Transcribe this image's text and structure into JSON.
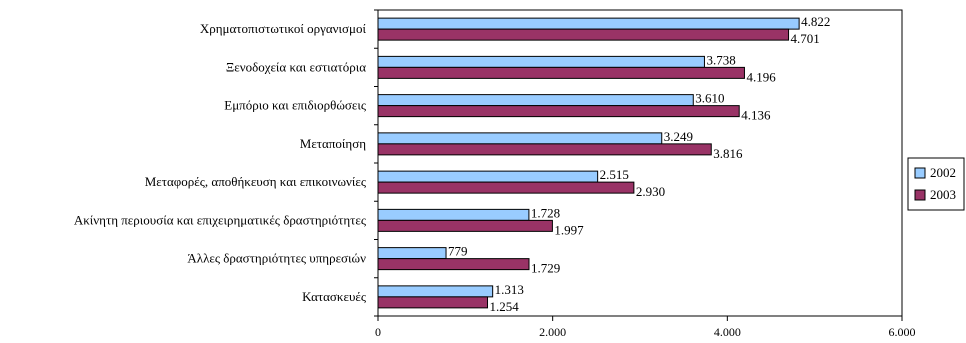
{
  "chart_data": {
    "type": "bar",
    "orientation": "horizontal",
    "categories": [
      "Χρηματοπιστωτικοί οργανισμοί",
      "Ξενοδοχεία και εστιατόρια",
      "Εμπόριο και επιδιορθώσεις",
      "Μεταποίηση",
      "Μεταφορές, αποθήκευση και επικοινωνίες",
      "Ακίνητη περιουσία και επιχειρηματικές δραστηριότητες",
      "Άλλες δραστηριότητες υπηρεσιών",
      "Κατασκευές"
    ],
    "series": [
      {
        "name": "2002",
        "color": "#99ccff",
        "values": [
          4822,
          3738,
          3610,
          3249,
          2515,
          1728,
          779,
          1313
        ],
        "labels": [
          "4.822",
          "3.738",
          "3.610",
          "3.249",
          "2.515",
          "1.728",
          "779",
          "1.313"
        ]
      },
      {
        "name": "2003",
        "color": "#993366",
        "values": [
          4701,
          4196,
          4136,
          3816,
          2930,
          1997,
          1729,
          1254
        ],
        "labels": [
          "4.701",
          "4.196",
          "4.136",
          "3.816",
          "2.930",
          "1.997",
          "1.729",
          "1.254"
        ]
      }
    ],
    "xlim": [
      0,
      6000
    ],
    "xticks": [
      0,
      2000,
      4000,
      6000
    ],
    "xtick_labels": [
      "0",
      "2.000",
      "4.000",
      "6.000"
    ],
    "grid": false,
    "legend_position": "right",
    "title": "",
    "xlabel": "",
    "ylabel": ""
  }
}
